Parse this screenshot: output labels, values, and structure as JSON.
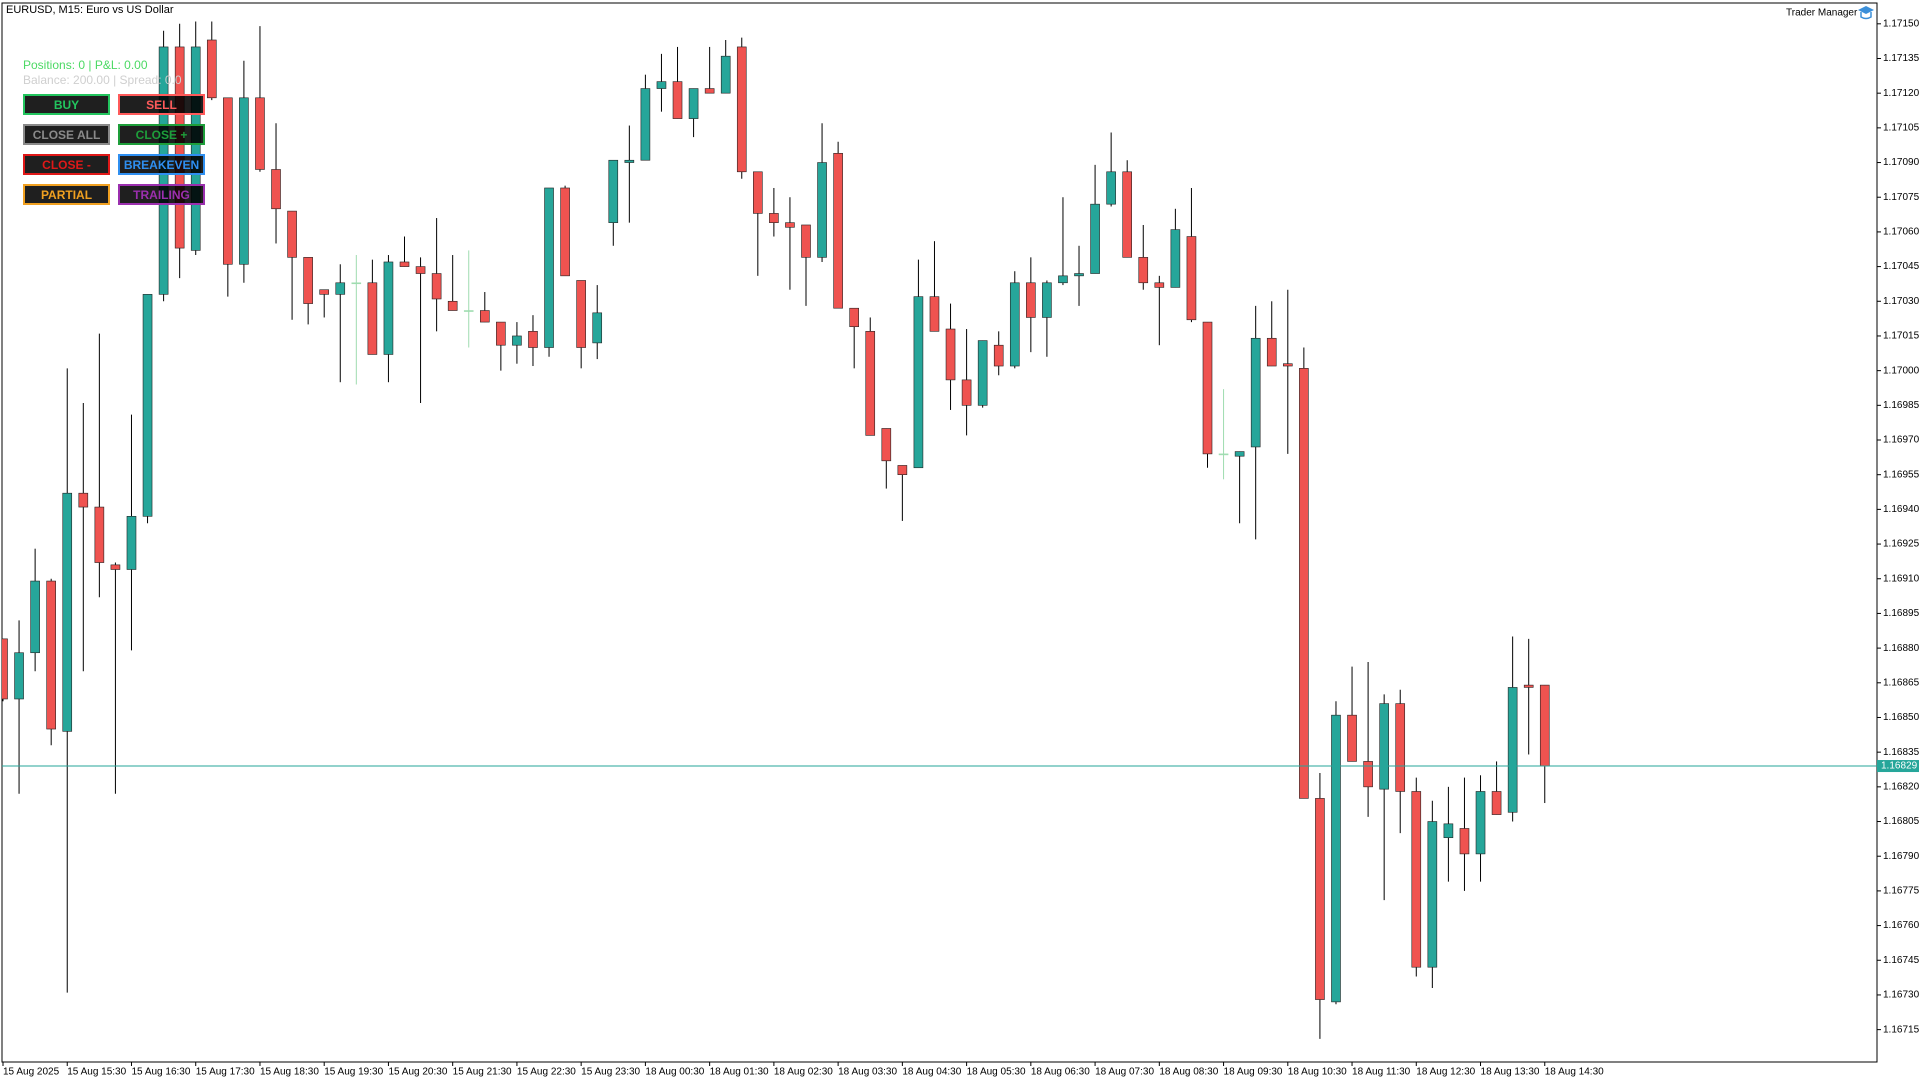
{
  "chart_data": {
    "type": "candlestick",
    "title": "EURUSD, M15:  Euro vs US Dollar",
    "categories": [
      "15 Aug 2025",
      null,
      null,
      null,
      "15 Aug 15:30",
      null,
      null,
      null,
      "15 Aug 16:30",
      null,
      null,
      null,
      "15 Aug 17:30",
      null,
      null,
      null,
      "15 Aug 18:30",
      null,
      null,
      null,
      "15 Aug 19:30",
      null,
      null,
      null,
      "15 Aug 20:30",
      null,
      null,
      null,
      "15 Aug 21:30",
      null,
      null,
      null,
      "15 Aug 22:30",
      null,
      null,
      null,
      "15 Aug 23:30",
      null,
      null,
      null,
      "18 Aug 00:30",
      null,
      null,
      null,
      "18 Aug 01:30",
      null,
      null,
      null,
      "18 Aug 02:30",
      null,
      null,
      null,
      "18 Aug 03:30",
      null,
      null,
      null,
      "18 Aug 04:30",
      null,
      null,
      null,
      "18 Aug 05:30",
      null,
      null,
      null,
      "18 Aug 06:30",
      null,
      null,
      null,
      "18 Aug 07:30",
      null,
      null,
      null,
      "18 Aug 08:30",
      null,
      null,
      null,
      "18 Aug 09:30",
      null,
      null,
      null,
      "18 Aug 10:30",
      null,
      null,
      null,
      "18 Aug 11:30",
      null,
      null,
      null,
      "18 Aug 12:30",
      null,
      null,
      null,
      "18 Aug 13:30",
      null,
      null,
      null,
      "18 Aug 14:30"
    ],
    "open": [
      1.16884,
      1.16858,
      1.16878,
      1.16909,
      1.16844,
      1.16947,
      1.16941,
      1.16916,
      1.16914,
      1.16937,
      1.17033,
      1.1714,
      1.17052,
      1.17143,
      1.17118,
      1.17046,
      1.17118,
      1.17087,
      1.17069,
      1.17049,
      1.17035,
      1.17033,
      1.17038,
      1.17038,
      1.17007,
      1.17047,
      1.17045,
      1.17042,
      1.1703,
      1.17026,
      1.17026,
      1.17021,
      1.17011,
      1.17017,
      1.1701,
      1.17079,
      1.17039,
      1.17012,
      1.17064,
      1.1709,
      1.17091,
      1.17122,
      1.17125,
      1.17109,
      1.17122,
      1.1712,
      1.1714,
      1.17086,
      1.17068,
      1.17064,
      1.17063,
      1.17049,
      1.17094,
      1.17027,
      1.17017,
      1.16975,
      1.16959,
      1.16958,
      1.17032,
      1.17018,
      1.16996,
      1.16985,
      1.17011,
      1.17002,
      1.17038,
      1.17023,
      1.17038,
      1.17041,
      1.17042,
      1.17072,
      1.17086,
      1.17049,
      1.17038,
      1.17036,
      1.17058,
      1.17021,
      1.16964,
      1.16963,
      1.16967,
      1.17014,
      1.17003,
      1.17001,
      1.16815,
      1.16727,
      1.16851,
      1.16831,
      1.16819,
      1.16856,
      1.16818,
      1.16742,
      1.16798,
      1.16802,
      1.16791,
      1.16818,
      1.16809,
      1.16864,
      1.16864
    ],
    "high": [
      1.16884,
      1.16892,
      1.16923,
      1.1691,
      1.17001,
      1.16986,
      1.17016,
      1.16917,
      1.16981,
      1.17033,
      1.17147,
      1.1715,
      1.17151,
      1.17151,
      1.17118,
      1.17134,
      1.17149,
      1.17107,
      1.17069,
      1.17049,
      1.17035,
      1.17046,
      1.1705,
      1.17048,
      1.1705,
      1.17058,
      1.17049,
      1.17066,
      1.1705,
      1.17052,
      1.17034,
      1.17021,
      1.17021,
      1.17024,
      1.17079,
      1.1708,
      1.17039,
      1.17037,
      1.17091,
      1.17106,
      1.17128,
      1.17137,
      1.1714,
      1.17122,
      1.1714,
      1.17143,
      1.17144,
      1.17086,
      1.17079,
      1.17075,
      1.17063,
      1.17107,
      1.17099,
      1.17027,
      1.17023,
      1.16975,
      1.16959,
      1.17048,
      1.17056,
      1.17029,
      1.17018,
      1.17013,
      1.17017,
      1.17043,
      1.17049,
      1.17039,
      1.17075,
      1.17054,
      1.17089,
      1.17103,
      1.17091,
      1.17063,
      1.17041,
      1.1707,
      1.17079,
      1.17021,
      1.16992,
      1.16965,
      1.17028,
      1.1703,
      1.17035,
      1.1701,
      1.16826,
      1.16857,
      1.16872,
      1.16874,
      1.1686,
      1.16862,
      1.16824,
      1.16814,
      1.1682,
      1.16824,
      1.16825,
      1.16831,
      1.16885,
      1.16884,
      1.16864
    ],
    "low": [
      1.16857,
      1.16817,
      1.1687,
      1.16838,
      1.16731,
      1.1687,
      1.16902,
      1.16817,
      1.16879,
      1.16934,
      1.1703,
      1.1704,
      1.1705,
      1.17117,
      1.17032,
      1.17038,
      1.17086,
      1.17055,
      1.17022,
      1.1702,
      1.17023,
      1.16995,
      1.16994,
      1.17007,
      1.16995,
      1.17045,
      1.16986,
      1.17017,
      1.17026,
      1.1701,
      1.17021,
      1.17,
      1.17003,
      1.17002,
      1.17006,
      1.17041,
      1.17001,
      1.17005,
      1.17054,
      1.17064,
      1.17091,
      1.17112,
      1.17109,
      1.17101,
      1.1712,
      1.1712,
      1.17083,
      1.17041,
      1.17058,
      1.17035,
      1.17028,
      1.17047,
      1.17027,
      1.17001,
      1.16972,
      1.16949,
      1.16935,
      1.16958,
      1.17017,
      1.16983,
      1.16972,
      1.16984,
      1.16998,
      1.17001,
      1.17008,
      1.17006,
      1.17037,
      1.17028,
      1.17042,
      1.17071,
      1.17049,
      1.17035,
      1.17011,
      1.17036,
      1.17021,
      1.16958,
      1.16953,
      1.16934,
      1.16927,
      1.17002,
      1.16964,
      1.16815,
      1.16711,
      1.16726,
      1.16831,
      1.16807,
      1.16771,
      1.168,
      1.16738,
      1.16733,
      1.16779,
      1.16775,
      1.16779,
      1.16808,
      1.16805,
      1.16834,
      1.16813
    ],
    "close": [
      1.16858,
      1.16878,
      1.16909,
      1.16845,
      1.16947,
      1.16941,
      1.16917,
      1.16914,
      1.16937,
      1.17033,
      1.1714,
      1.17053,
      1.1714,
      1.17118,
      1.17046,
      1.17118,
      1.17087,
      1.1707,
      1.17049,
      1.17029,
      1.17033,
      1.17038,
      1.17038,
      1.17007,
      1.17047,
      1.17045,
      1.17042,
      1.17031,
      1.17026,
      1.17026,
      1.17021,
      1.17011,
      1.17015,
      1.1701,
      1.17079,
      1.17041,
      1.1701,
      1.17025,
      1.17091,
      1.17091,
      1.17122,
      1.17125,
      1.17109,
      1.17122,
      1.1712,
      1.17136,
      1.17086,
      1.17068,
      1.17064,
      1.17062,
      1.17049,
      1.1709,
      1.17027,
      1.17019,
      1.16972,
      1.16961,
      1.16955,
      1.17032,
      1.17017,
      1.16996,
      1.16985,
      1.17013,
      1.17002,
      1.17038,
      1.17023,
      1.17038,
      1.17041,
      1.17042,
      1.17072,
      1.17086,
      1.17049,
      1.17038,
      1.17036,
      1.17061,
      1.17022,
      1.16964,
      1.16964,
      1.16965,
      1.17014,
      1.17002,
      1.17002,
      1.16815,
      1.16728,
      1.16851,
      1.16831,
      1.1682,
      1.16856,
      1.16818,
      1.16742,
      1.16805,
      1.16804,
      1.16791,
      1.16818,
      1.16808,
      1.16863,
      1.16863,
      1.16829
    ],
    "up_color": "#26a69a",
    "down_color": "#ef5350",
    "doji_color": "#9fdcb0",
    "last_price": 1.16829,
    "last_price_color": "#26a69a",
    "ylim": [
      1.16701,
      1.17159
    ],
    "yticks": [
      1.16715,
      {
        "value": 1.1673,
        "label": "1.16730"
      },
      1.16745,
      {
        "value": 1.1676,
        "label": "1.16760"
      },
      1.16775,
      {
        "value": 1.1679,
        "label": "1.16790"
      },
      1.16805,
      {
        "value": 1.1682,
        "label": "1.16820"
      },
      1.16835,
      {
        "value": 1.1685,
        "label": "1.16850"
      },
      1.16865,
      {
        "value": 1.1688,
        "label": "1.16880"
      },
      1.16895,
      {
        "value": 1.1691,
        "label": "1.16910"
      },
      1.16925,
      {
        "value": 1.1694,
        "label": "1.16940"
      },
      1.16955,
      {
        "value": 1.1697,
        "label": "1.16970"
      },
      1.16985,
      {
        "value": 1.17,
        "label": "1.17000"
      },
      1.17015,
      {
        "value": 1.1703,
        "label": "1.17030"
      },
      1.17045,
      {
        "value": 1.1706,
        "label": "1.17060"
      },
      1.17075,
      {
        "value": 1.1709,
        "label": "1.17090"
      },
      1.17105,
      {
        "value": 1.1712,
        "label": "1.17120"
      },
      1.17135,
      {
        "value": 1.1715,
        "label": "1.17150"
      }
    ],
    "grid": false
  },
  "panel": {
    "name": "Trader Manager",
    "status": "Positions: 0 | P&L: 0.00",
    "balance": "Balance: 200.00 | Spread: 0.0",
    "buttons": [
      {
        "label": "BUY",
        "color": "#22c55e"
      },
      {
        "label": "SELL",
        "color": "#ff5a5a"
      },
      {
        "label": "CLOSE ALL",
        "color": "#8a8a8a"
      },
      {
        "label": "CLOSE +",
        "color": "#1e9e3a"
      },
      {
        "label": "CLOSE -",
        "color": "#e01818"
      },
      {
        "label": "BREAKEVEN",
        "color": "#2f8ff0"
      },
      {
        "label": "PARTIAL",
        "color": "#f0a020"
      },
      {
        "label": "TRAILING",
        "color": "#9b2fae"
      }
    ]
  }
}
